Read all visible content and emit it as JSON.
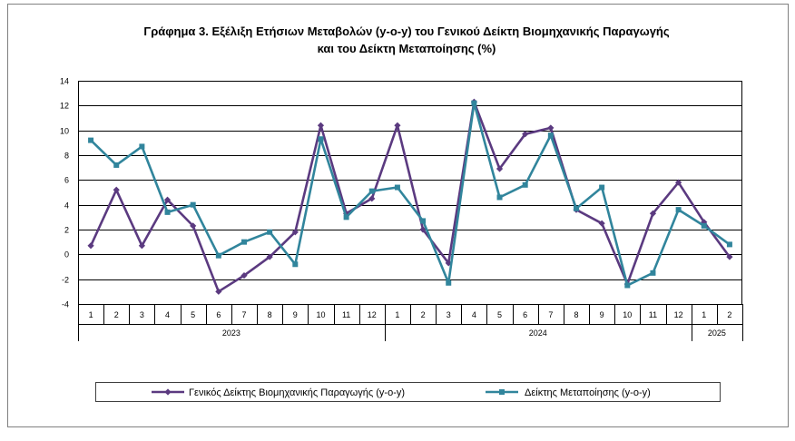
{
  "chart_data": {
    "type": "line",
    "title": [
      "Γράφημα 3. Εξέλιξη Ετήσιων Μεταβολών (y-o-y) του Γενικού Δείκτη Βιομηχανικής Παραγωγής",
      "και του Δείκτη Μεταποίησης (%)"
    ],
    "xlabel": "",
    "ylabel": "",
    "ylim": [
      -4,
      14
    ],
    "yticks": [
      -4,
      -2,
      0,
      2,
      4,
      6,
      8,
      10,
      12,
      14
    ],
    "categories": [
      "1",
      "2",
      "3",
      "4",
      "5",
      "6",
      "7",
      "8",
      "9",
      "10",
      "11",
      "12",
      "1",
      "2",
      "3",
      "4",
      "5",
      "6",
      "7",
      "8",
      "9",
      "10",
      "11",
      "12",
      "1",
      "2"
    ],
    "groups": [
      {
        "label": "2023",
        "count": 12
      },
      {
        "label": "2024",
        "count": 12
      },
      {
        "label": "2025",
        "count": 2
      }
    ],
    "grid": true,
    "legend_position": "bottom",
    "series": [
      {
        "name": "Γενικός Δείκτης Βιομηχανικής Παραγωγής (y-o-y)",
        "color": "#5B3A80",
        "marker": "diamond",
        "values": [
          0.7,
          5.2,
          0.7,
          4.4,
          2.3,
          -3.0,
          -1.7,
          -0.2,
          1.8,
          10.4,
          3.3,
          4.5,
          10.4,
          2.0,
          -0.7,
          12.3,
          6.9,
          9.7,
          10.2,
          3.6,
          2.5,
          -2.4,
          3.3,
          5.8,
          2.6,
          -0.2
        ]
      },
      {
        "name": "Δείκτης Μεταποίησης (y-o-y)",
        "color": "#31859C",
        "marker": "square",
        "values": [
          9.2,
          7.2,
          8.7,
          3.4,
          4.0,
          -0.1,
          1.0,
          1.8,
          -0.8,
          9.3,
          3.0,
          5.1,
          5.4,
          2.7,
          -2.3,
          12.2,
          4.6,
          5.6,
          9.6,
          3.7,
          5.4,
          -2.5,
          -1.5,
          3.6,
          2.3,
          0.8
        ]
      }
    ]
  }
}
